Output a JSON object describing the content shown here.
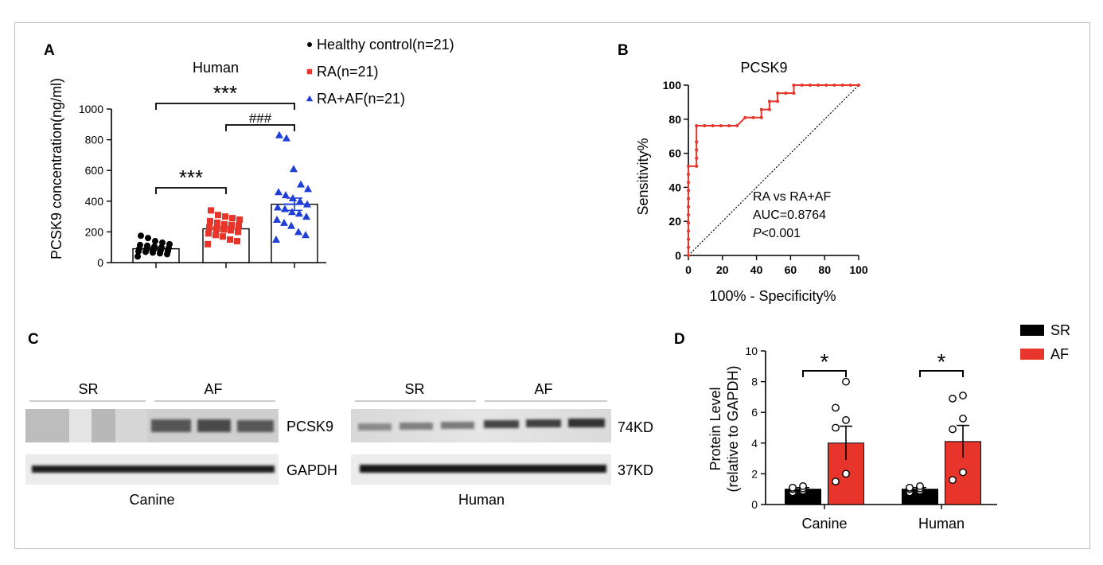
{
  "panels": {
    "a": "A",
    "b": "B",
    "c": "C",
    "d": "D"
  },
  "colors": {
    "control": "#000000",
    "ra": "#e8352b",
    "ra_af": "#1f3fd6",
    "sr": "#000000",
    "af": "#e8352b",
    "roc": "#e8352b",
    "frame": "#bdbdbd"
  },
  "chart_data": [
    {
      "id": "A",
      "type": "bar",
      "title": "Human",
      "ylabel": "PCSK9 concentration(ng/ml)",
      "xlabel": "",
      "ylim": [
        0,
        1000
      ],
      "yticks": [
        0,
        200,
        400,
        600,
        800,
        1000
      ],
      "legend_position": "top-right",
      "categories": [
        "Healthy control(n=21)",
        "RA(n=21)",
        "RA+AF(n=21)"
      ],
      "series": [
        {
          "name": "Healthy control(n=21)",
          "marker": "circle",
          "mean": 90,
          "sem": 11,
          "points": [
            40,
            55,
            60,
            65,
            70,
            72,
            75,
            80,
            85,
            88,
            90,
            95,
            100,
            105,
            110,
            115,
            120,
            130,
            140,
            160,
            175
          ]
        },
        {
          "name": "RA(n=21)",
          "marker": "square",
          "mean": 220,
          "sem": 14,
          "points": [
            120,
            140,
            150,
            170,
            180,
            190,
            200,
            210,
            215,
            220,
            230,
            240,
            245,
            250,
            260,
            270,
            280,
            290,
            300,
            310,
            340
          ]
        },
        {
          "name": "RA+AF(n=21)",
          "marker": "triangle",
          "mean": 380,
          "sem": 40,
          "points": [
            150,
            180,
            200,
            240,
            260,
            280,
            300,
            320,
            330,
            350,
            360,
            380,
            400,
            420,
            440,
            460,
            480,
            510,
            610,
            810,
            830
          ]
        }
      ],
      "comparisons": [
        {
          "from": 0,
          "to": 2,
          "label": "***"
        },
        {
          "from": 1,
          "to": 2,
          "label": "###"
        },
        {
          "from": 0,
          "to": 1,
          "label": "***"
        }
      ]
    },
    {
      "id": "B",
      "type": "line",
      "title": "PCSK9",
      "xlabel": "100% - Specificity%",
      "ylabel": "Sensitivity%",
      "xlim": [
        0,
        100
      ],
      "ylim": [
        0,
        100
      ],
      "xticks": [
        0,
        20,
        40,
        60,
        80,
        100
      ],
      "yticks": [
        0,
        20,
        40,
        60,
        80,
        100
      ],
      "series": [
        {
          "name": "ROC",
          "x": [
            0,
            0,
            0,
            0,
            0,
            0,
            0,
            0,
            0,
            0,
            0,
            0,
            4.76,
            4.76,
            4.76,
            4.76,
            4.76,
            9.52,
            14.29,
            19.05,
            23.81,
            28.57,
            33.33,
            38.1,
            42.86,
            42.86,
            47.62,
            47.62,
            52.38,
            52.38,
            57.14,
            61.9,
            61.9,
            66.67,
            71.43,
            76.19,
            80.95,
            85.71,
            90.48,
            95.24,
            100
          ],
          "y": [
            0,
            4.76,
            9.52,
            14.29,
            19.05,
            23.81,
            28.57,
            33.33,
            38.1,
            42.86,
            47.62,
            52.38,
            52.38,
            57.14,
            61.9,
            66.67,
            76.19,
            76.19,
            76.19,
            76.19,
            76.19,
            76.19,
            80.95,
            80.95,
            80.95,
            85.71,
            85.71,
            90.48,
            90.48,
            95.24,
            95.24,
            95.24,
            100,
            100,
            100,
            100,
            100,
            100,
            100,
            100,
            100
          ]
        },
        {
          "name": "reference",
          "x": [
            0,
            100
          ],
          "y": [
            0,
            100
          ],
          "style": "dotted"
        }
      ],
      "annotation": {
        "line1": "RA vs RA+AF",
        "line2": "AUC=0.8764",
        "p_italic": "P",
        "p_rest": "<0.001"
      }
    },
    {
      "id": "D",
      "type": "bar",
      "ylabel_line1": "Protein Level",
      "ylabel_line2": "(relative to GAPDH)",
      "xlabel": "",
      "ylim": [
        0,
        10
      ],
      "yticks": [
        0,
        2,
        4,
        6,
        8,
        10
      ],
      "categories": [
        "Canine",
        "Human"
      ],
      "legend_position": "top-right",
      "series": [
        {
          "name": "SR",
          "values": [
            1.0,
            1.0
          ],
          "sem": [
            0.1,
            0.1
          ],
          "points": [
            [
              0.8,
              0.9,
              1.0,
              1.05,
              1.1,
              1.2
            ],
            [
              0.8,
              0.9,
              1.0,
              1.05,
              1.1,
              1.2
            ]
          ]
        },
        {
          "name": "AF",
          "values": [
            4.0,
            4.1
          ],
          "sem": [
            1.1,
            1.05
          ],
          "points": [
            [
              1.5,
              2.0,
              5.0,
              5.5,
              6.3,
              8.0
            ],
            [
              1.6,
              2.1,
              4.9,
              5.6,
              6.9,
              7.1
            ]
          ]
        }
      ],
      "comparisons": [
        {
          "category": 0,
          "label": "*"
        },
        {
          "category": 1,
          "label": "*"
        }
      ]
    }
  ],
  "blots": {
    "group_sr": "SR",
    "group_af": "AF",
    "pcsk9": "PCSK9",
    "gapdh": "GAPDH",
    "size_pcsk9": "74KD",
    "size_gapdh": "37KD",
    "species_canine": "Canine",
    "species_human": "Human"
  }
}
